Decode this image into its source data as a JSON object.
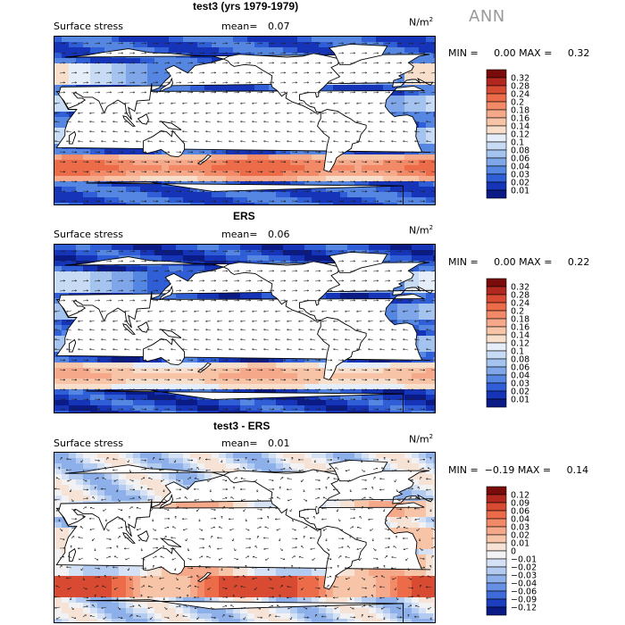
{
  "season": "ANN",
  "chart_data": [
    {
      "type": "heatmap",
      "title": "test3 (yrs 1979-1979)",
      "variable": "Surface stress",
      "mean_label": "mean=",
      "mean": "0.07",
      "units": "N/m",
      "units_sup": "2",
      "min_max": "MIN =     0.00 MAX =     0.32",
      "min": 0.0,
      "max": 0.32,
      "levels": [
        "0.32",
        "0.28",
        "0.24",
        "0.2",
        "0.18",
        "0.16",
        "0.14",
        "0.12",
        "0.1",
        "0.08",
        "0.06",
        "0.04",
        "0.03",
        "0.02",
        "0.01"
      ],
      "colors": [
        "#7a0b0b",
        "#b2281f",
        "#d84a32",
        "#ec6c4a",
        "#f28a68",
        "#f6a98a",
        "#f8c4a8",
        "#f7dfcb",
        "#e6eef9",
        "#c7dbf4",
        "#a4c3ee",
        "#7ea6e8",
        "#5486e2",
        "#2f5ed6",
        "#1534b8",
        "#0a1b86"
      ],
      "field": "model"
    },
    {
      "type": "heatmap",
      "title": "ERS",
      "variable": "Surface stress",
      "mean_label": "mean=",
      "mean": "0.06",
      "units": "N/m",
      "units_sup": "2",
      "min_max": "MIN =     0.00 MAX =     0.22",
      "min": 0.0,
      "max": 0.22,
      "levels": [
        "0.32",
        "0.28",
        "0.24",
        "0.2",
        "0.18",
        "0.16",
        "0.14",
        "0.12",
        "0.1",
        "0.08",
        "0.06",
        "0.04",
        "0.03",
        "0.02",
        "0.01"
      ],
      "colors": [
        "#7a0b0b",
        "#b2281f",
        "#d84a32",
        "#ec6c4a",
        "#f28a68",
        "#f6a98a",
        "#f8c4a8",
        "#f7dfcb",
        "#e6eef9",
        "#c7dbf4",
        "#a4c3ee",
        "#7ea6e8",
        "#5486e2",
        "#2f5ed6",
        "#1534b8",
        "#0a1b86"
      ],
      "field": "obs"
    },
    {
      "type": "heatmap",
      "title": "test3 - ERS",
      "variable": "Surface stress",
      "mean_label": "mean=",
      "mean": "0.01",
      "units": "N/m",
      "units_sup": "2",
      "min_max": "MIN =  −0.19 MAX =     0.14",
      "min": -0.19,
      "max": 0.14,
      "levels": [
        "0.12",
        "0.09",
        "0.06",
        "0.04",
        "0.03",
        "0.02",
        "0.01",
        "0",
        "−0.01",
        "−0.02",
        "−0.03",
        "−0.04",
        "−0.06",
        "−0.09",
        "−0.12"
      ],
      "colors": [
        "#7a0b0b",
        "#b2281f",
        "#d84a32",
        "#ec6c4a",
        "#f28a68",
        "#f6a98a",
        "#f8c4a8",
        "#f7e3d6",
        "#f2f2f4",
        "#d5e2f6",
        "#b3cbf0",
        "#8eb0ea",
        "#6690e4",
        "#3f6bda",
        "#1b3fbf",
        "#0a1b86"
      ],
      "field": "diff"
    }
  ]
}
